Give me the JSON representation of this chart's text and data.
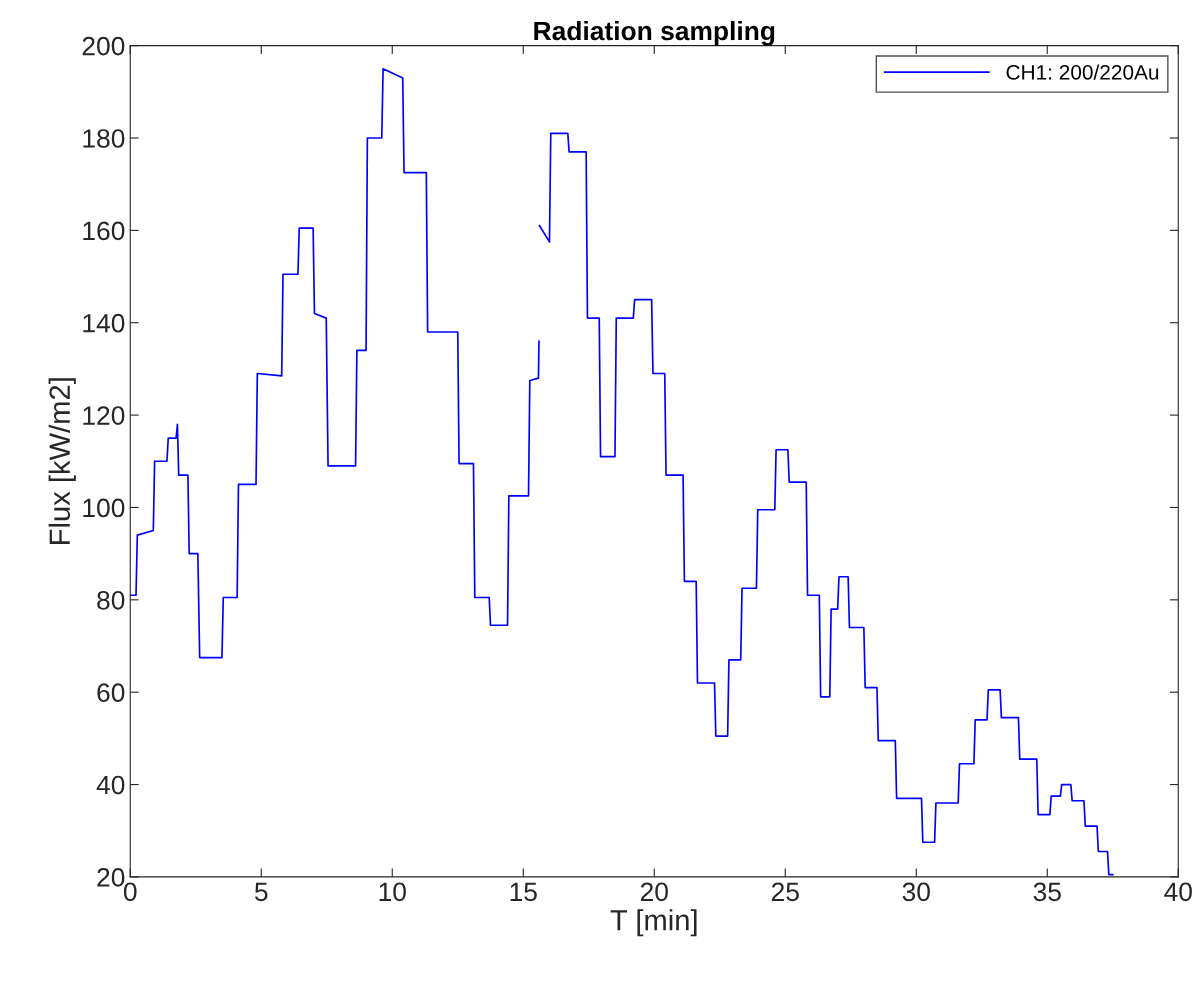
{
  "chart_data": {
    "type": "line",
    "title": "Radiation sampling",
    "xlabel": "T [min]",
    "ylabel": "Flux [kW/m2]",
    "xlim": [
      0,
      40
    ],
    "xticks": [
      0,
      5,
      10,
      15,
      20,
      25,
      30,
      35,
      40
    ],
    "ylim": [
      20,
      200
    ],
    "yticks": [
      20,
      40,
      60,
      80,
      100,
      120,
      140,
      160,
      180,
      200
    ],
    "grid": false,
    "legend": "top right",
    "marker": "none",
    "line_style": "solid",
    "series": [
      {
        "name": "CH1: 200/220Au",
        "color": "#0000ff",
        "x": [
          0,
          0.22,
          0.27,
          0.88,
          0.93,
          1.4,
          1.45,
          1.75,
          1.8,
          1.85,
          2.2,
          2.25,
          2.58,
          2.65,
          3.5,
          3.55,
          4.08,
          4.13,
          4.8,
          4.85,
          5.78,
          5.83,
          6.4,
          6.45,
          6.98,
          7.03,
          7.48,
          7.55,
          8.6,
          8.65,
          9.0,
          9.05,
          9.6,
          9.65,
          10.4,
          10.45,
          11.3,
          11.35,
          12.5,
          12.55,
          13.1,
          13.15,
          13.7,
          13.75,
          14.4,
          14.45,
          15.2,
          15.25,
          15.58,
          15.6,
          15.61,
          15.62,
          16.0,
          16.05,
          16.7,
          16.75,
          17.4,
          17.45,
          17.9,
          17.95,
          18.5,
          18.55,
          19.2,
          19.25,
          19.9,
          19.95,
          20.4,
          20.45,
          21.1,
          21.15,
          21.6,
          21.65,
          22.3,
          22.35,
          22.8,
          22.85,
          23.3,
          23.35,
          23.9,
          23.95,
          24.6,
          24.65,
          25.1,
          25.15,
          25.8,
          25.85,
          26.3,
          26.35,
          26.7,
          26.75,
          27.0,
          27.05,
          27.4,
          27.45,
          28.0,
          28.05,
          28.5,
          28.55,
          29.2,
          29.25,
          30.2,
          30.25,
          30.7,
          30.75,
          31.6,
          31.65,
          32.2,
          32.25,
          32.7,
          32.75,
          33.2,
          33.25,
          33.9,
          33.95,
          34.6,
          34.65,
          35.1,
          35.15,
          35.5,
          35.55,
          35.9,
          35.95,
          36.4,
          36.45,
          36.9,
          36.95,
          37.3,
          37.35,
          37.5
        ],
        "values": [
          81,
          81,
          94,
          95,
          110,
          110,
          115,
          115,
          118,
          107,
          107,
          90,
          90,
          67.5,
          67.5,
          80.5,
          80.5,
          105,
          105,
          129,
          128.5,
          150.5,
          150.5,
          160.5,
          160.5,
          142,
          141,
          109,
          109,
          134,
          134,
          180,
          180,
          195,
          193,
          172.5,
          172.5,
          138,
          138,
          109.5,
          109.5,
          80.5,
          80.5,
          74.5,
          74.5,
          102.5,
          102.5,
          127.5,
          128,
          136,
          null,
          161,
          157.5,
          181,
          181,
          177,
          177,
          141,
          141,
          111,
          111,
          141,
          141,
          145,
          145,
          129,
          129,
          107,
          107,
          84,
          84,
          62,
          62,
          50.5,
          50.5,
          67,
          67,
          82.5,
          82.5,
          99.5,
          99.5,
          112.5,
          112.5,
          105.5,
          105.5,
          81,
          81,
          59,
          59,
          78,
          78,
          85,
          85,
          74,
          74,
          61,
          61,
          49.5,
          49.5,
          37,
          37,
          27.5,
          27.5,
          36,
          36,
          44.5,
          44.5,
          54,
          54,
          60.5,
          60.5,
          54.5,
          54.5,
          45.5,
          45.5,
          33.5,
          33.5,
          37.5,
          37.5,
          40,
          40,
          36.5,
          36.5,
          31,
          31,
          25.5,
          25.5,
          20.5,
          20.5
        ]
      }
    ]
  }
}
